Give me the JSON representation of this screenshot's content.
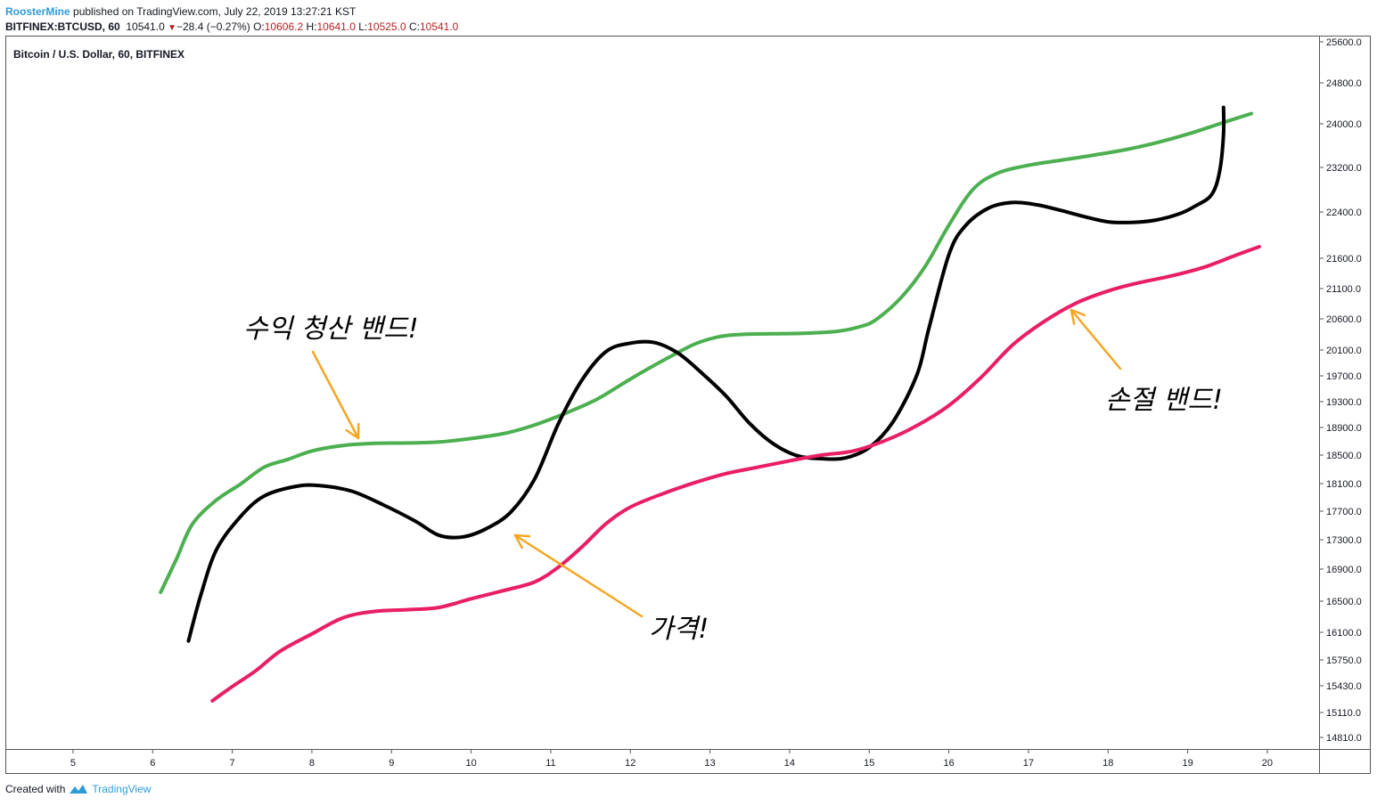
{
  "header": {
    "author": "RoosterMine",
    "published_text": "published on TradingView.com, July 22, 2019 13:27:21 KST",
    "symbol": "BITFINEX:BTCUSD, 60",
    "last": "10541.0",
    "change_text": "−28.4 (−0.27%)",
    "o_label": "O:",
    "o_value": "10606.2",
    "h_label": "H:",
    "h_value": "10641.0",
    "l_label": "L:",
    "l_value": "10525.0",
    "c_label": "C:",
    "c_value": "10541.0"
  },
  "footer": {
    "created_with": "Created with",
    "brand": "TradingView"
  },
  "chart_data": {
    "type": "line",
    "title": "Bitcoin / U.S. Dollar, 60, BITFINEX",
    "xlabel": "",
    "ylabel": "",
    "xlim": [
      4.15,
      20.65
    ],
    "ylim": [
      14550,
      25750
    ],
    "x_ticks": [
      5,
      6,
      7,
      8,
      9,
      10,
      11,
      12,
      13,
      14,
      15,
      16,
      17,
      18,
      19,
      20
    ],
    "y_ticks": [
      14810,
      15110,
      15430,
      15750,
      16100,
      16500,
      16900,
      17300,
      17700,
      18100,
      18500,
      18900,
      19300,
      19700,
      20100,
      20600,
      21100,
      21600,
      22400,
      23200,
      24000,
      24800,
      25600
    ],
    "y_tick_labels": [
      "14810.0",
      "15110.0",
      "15430.0",
      "15750.0",
      "16100.0",
      "16500.0",
      "16900.0",
      "17300.0",
      "17700.0",
      "18100.0",
      "18500.0",
      "18900.0",
      "19300.0",
      "19700.0",
      "20100.0",
      "20600.0",
      "21100.0",
      "21600.0",
      "22400.0",
      "23200.0",
      "24000.0",
      "24800.0",
      "25600.0"
    ],
    "grid": false,
    "series": [
      {
        "color": "#4caf50",
        "points": [
          [
            6.1,
            16610
          ],
          [
            6.3,
            17040
          ],
          [
            6.5,
            17520
          ],
          [
            6.8,
            17860
          ],
          [
            7.1,
            18090
          ],
          [
            7.4,
            18330
          ],
          [
            7.7,
            18440
          ],
          [
            8.0,
            18560
          ],
          [
            8.4,
            18640
          ],
          [
            8.8,
            18670
          ],
          [
            9.2,
            18675
          ],
          [
            9.6,
            18690
          ],
          [
            10.0,
            18740
          ],
          [
            10.4,
            18810
          ],
          [
            10.7,
            18900
          ],
          [
            11.0,
            19030
          ],
          [
            11.3,
            19180
          ],
          [
            11.6,
            19350
          ],
          [
            12.0,
            19650
          ],
          [
            12.4,
            19930
          ],
          [
            12.8,
            20190
          ],
          [
            13.1,
            20310
          ],
          [
            13.4,
            20350
          ],
          [
            13.8,
            20360
          ],
          [
            14.2,
            20370
          ],
          [
            14.6,
            20400
          ],
          [
            14.9,
            20480
          ],
          [
            15.1,
            20600
          ],
          [
            15.4,
            20950
          ],
          [
            15.7,
            21460
          ],
          [
            16.0,
            22170
          ],
          [
            16.3,
            22800
          ],
          [
            16.6,
            23090
          ],
          [
            17.0,
            23240
          ],
          [
            17.4,
            23330
          ],
          [
            17.8,
            23420
          ],
          [
            18.2,
            23520
          ],
          [
            18.6,
            23650
          ],
          [
            19.0,
            23810
          ],
          [
            19.4,
            24000
          ],
          [
            19.8,
            24200
          ]
        ]
      },
      {
        "color": "#000000",
        "points": [
          [
            6.45,
            15990
          ],
          [
            6.6,
            16560
          ],
          [
            6.8,
            17160
          ],
          [
            7.1,
            17620
          ],
          [
            7.4,
            17920
          ],
          [
            7.8,
            18060
          ],
          [
            8.1,
            18070
          ],
          [
            8.5,
            17990
          ],
          [
            8.9,
            17790
          ],
          [
            9.3,
            17560
          ],
          [
            9.6,
            17360
          ],
          [
            9.9,
            17340
          ],
          [
            10.2,
            17460
          ],
          [
            10.5,
            17690
          ],
          [
            10.8,
            18170
          ],
          [
            11.1,
            18970
          ],
          [
            11.4,
            19650
          ],
          [
            11.7,
            20080
          ],
          [
            12.0,
            20210
          ],
          [
            12.3,
            20220
          ],
          [
            12.6,
            20050
          ],
          [
            12.9,
            19740
          ],
          [
            13.2,
            19390
          ],
          [
            13.5,
            18960
          ],
          [
            13.8,
            18660
          ],
          [
            14.1,
            18490
          ],
          [
            14.4,
            18450
          ],
          [
            14.7,
            18460
          ],
          [
            15.0,
            18610
          ],
          [
            15.3,
            18990
          ],
          [
            15.6,
            19720
          ],
          [
            15.75,
            20450
          ],
          [
            16.0,
            21660
          ],
          [
            16.2,
            22150
          ],
          [
            16.5,
            22470
          ],
          [
            16.8,
            22570
          ],
          [
            17.1,
            22530
          ],
          [
            17.4,
            22430
          ],
          [
            17.7,
            22320
          ],
          [
            18.0,
            22230
          ],
          [
            18.3,
            22220
          ],
          [
            18.6,
            22260
          ],
          [
            18.9,
            22370
          ],
          [
            19.1,
            22510
          ],
          [
            19.3,
            22710
          ],
          [
            19.4,
            23120
          ],
          [
            19.45,
            23810
          ],
          [
            19.45,
            24320
          ]
        ]
      },
      {
        "color": "#e91e63",
        "points": [
          [
            6.75,
            15250
          ],
          [
            7.0,
            15420
          ],
          [
            7.3,
            15620
          ],
          [
            7.6,
            15860
          ],
          [
            8.0,
            16080
          ],
          [
            8.4,
            16290
          ],
          [
            8.8,
            16370
          ],
          [
            9.2,
            16390
          ],
          [
            9.6,
            16420
          ],
          [
            10.0,
            16530
          ],
          [
            10.4,
            16630
          ],
          [
            10.8,
            16740
          ],
          [
            11.1,
            16930
          ],
          [
            11.4,
            17210
          ],
          [
            11.7,
            17530
          ],
          [
            12.0,
            17760
          ],
          [
            12.4,
            17950
          ],
          [
            12.8,
            18110
          ],
          [
            13.2,
            18240
          ],
          [
            13.6,
            18330
          ],
          [
            14.0,
            18420
          ],
          [
            14.4,
            18500
          ],
          [
            14.8,
            18560
          ],
          [
            15.2,
            18710
          ],
          [
            15.6,
            18930
          ],
          [
            16.0,
            19240
          ],
          [
            16.4,
            19670
          ],
          [
            16.8,
            20180
          ],
          [
            17.2,
            20560
          ],
          [
            17.6,
            20860
          ],
          [
            18.0,
            21060
          ],
          [
            18.4,
            21200
          ],
          [
            18.8,
            21310
          ],
          [
            19.2,
            21450
          ],
          [
            19.6,
            21650
          ],
          [
            19.9,
            21800
          ]
        ]
      }
    ],
    "annotations": [
      {
        "text": "수익 청산 밴드!",
        "color": "#000000"
      },
      {
        "text": "가격!",
        "color": "#000000"
      },
      {
        "text": "손절 밴드!",
        "color": "#000000"
      }
    ],
    "arrow_color": "#f5a623"
  }
}
